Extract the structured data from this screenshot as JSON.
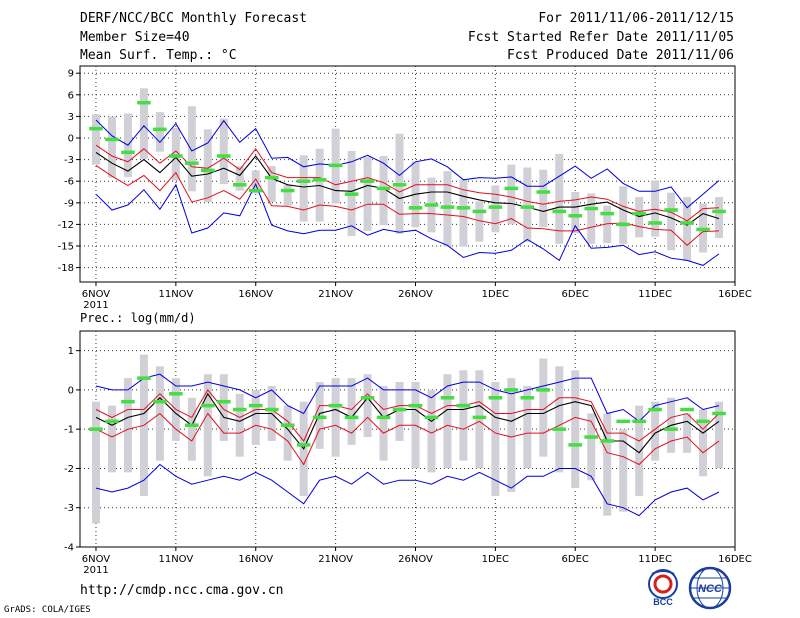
{
  "header": {
    "title": "DERF/NCC/BCC Monthly Forecast",
    "member": "Member Size=40",
    "variable": "Mean Surf. Temp.: °C",
    "period": "For 2011/11/06-2011/12/15",
    "started": "Fcst Started Refer Date 2011/11/05",
    "produced": "Fcst Produced Date 2011/11/06"
  },
  "footer": {
    "url": "http://cmdp.ncc.cma.gov.cn",
    "grads": "GrADS: COLA/IGES",
    "logo_bcc": "BCC",
    "logo_ncc": "NCC"
  },
  "colors": {
    "ensemble_spread": "#d0d0d6",
    "observed_mean": "#44dd44",
    "ensemble_mean": "#000000",
    "inner_bounds": "#e01020",
    "outer_bounds": "#0000dd",
    "grid": "#333333"
  },
  "chart_data": [
    {
      "type": "line",
      "title": "Mean Surf. Temp.: °C",
      "x_tick_labels": [
        "6NOV",
        "11NOV",
        "16NOV",
        "21NOV",
        "26NOV",
        "1DEC",
        "6DEC",
        "11DEC",
        "16DEC"
      ],
      "x_year_label": "2011",
      "ylim": [
        -20,
        10
      ],
      "yticks": [
        9,
        6,
        3,
        0,
        -3,
        -6,
        -9,
        -12,
        -15,
        -18
      ],
      "days": 40,
      "series": [
        {
          "name": "ensemble mean",
          "values": [
            -2.0,
            -3.5,
            -4.6,
            -3.0,
            -4.8,
            -2.7,
            -5.3,
            -5.0,
            -4.2,
            -5.2,
            -2.5,
            -5.6,
            -6.5,
            -6.8,
            -6.6,
            -7.3,
            -7.4,
            -6.6,
            -7.0,
            -8.4,
            -7.8,
            -7.5,
            -7.5,
            -8.1,
            -8.6,
            -9.0,
            -9.1,
            -9.6,
            -10.2,
            -9.6,
            -9.6,
            -9.2,
            -8.9,
            -10.0,
            -10.9,
            -10.4,
            -11.1,
            -12.1,
            -10.5,
            -11.2
          ]
        },
        {
          "name": "upper inner",
          "values": [
            -1.0,
            -2.5,
            -3.3,
            -1.5,
            -3.5,
            -1.8,
            -4.0,
            -4.2,
            -2.8,
            -4.4,
            -1.5,
            -4.8,
            -5.5,
            -5.5,
            -5.5,
            -6.5,
            -6.0,
            -5.5,
            -6.2,
            -7.5,
            -6.5,
            -6.5,
            -6.5,
            -7.2,
            -7.6,
            -7.8,
            -8.2,
            -8.8,
            -9.2,
            -8.8,
            -8.6,
            -8.2,
            -8.5,
            -9.5,
            -10.2,
            -9.9,
            -10.3,
            -11.5,
            -9.8,
            -9.7
          ]
        },
        {
          "name": "lower inner",
          "values": [
            -3.8,
            -5.3,
            -6.6,
            -5.2,
            -7.3,
            -4.8,
            -8.9,
            -8.3,
            -7.3,
            -8.5,
            -5.7,
            -9.4,
            -9.5,
            -10.0,
            -9.3,
            -9.5,
            -10.0,
            -9.2,
            -9.2,
            -10.6,
            -10.5,
            -10.5,
            -10.7,
            -10.9,
            -11.5,
            -11.9,
            -11.2,
            -12.5,
            -12.6,
            -12.9,
            -12.9,
            -12.4,
            -11.9,
            -11.8,
            -12.3,
            -12.7,
            -12.8,
            -14.9,
            -13.0,
            -12.9
          ]
        },
        {
          "name": "upper outer",
          "values": [
            2.5,
            0.3,
            -1.0,
            1.7,
            -0.6,
            2.0,
            -1.8,
            -0.7,
            2.4,
            -0.6,
            1.3,
            -2.8,
            -2.7,
            -4.0,
            -3.6,
            -3.8,
            -3.3,
            -2.4,
            -3.5,
            -5.2,
            -3.3,
            -2.9,
            -4.0,
            -5.8,
            -5.5,
            -5.6,
            -5.4,
            -6.7,
            -6.7,
            -5.3,
            -3.9,
            -5.6,
            -4.3,
            -6.3,
            -7.4,
            -7.4,
            -6.8,
            -9.7,
            -7.8,
            -5.9
          ]
        },
        {
          "name": "lower outer",
          "values": [
            -7.8,
            -10.0,
            -9.3,
            -7.2,
            -9.9,
            -6.5,
            -13.2,
            -12.5,
            -10.4,
            -10.8,
            -6.4,
            -12.1,
            -12.9,
            -13.3,
            -12.8,
            -12.8,
            -12.2,
            -13.5,
            -12.7,
            -13.1,
            -12.8,
            -14.0,
            -14.9,
            -16.6,
            -15.9,
            -16.0,
            -15.6,
            -14.1,
            -15.4,
            -17.0,
            -12.2,
            -15.3,
            -15.2,
            -14.9,
            -16.2,
            -15.8,
            -16.7,
            -17.0,
            -17.7,
            -16.1
          ]
        }
      ],
      "observed": [
        1.3,
        -0.2,
        -2.0,
        4.9,
        1.2,
        -2.5,
        -3.5,
        -4.5,
        -2.5,
        -6.5,
        -7.3,
        -5.5,
        -7.3,
        -6.0,
        -5.8,
        -3.8,
        -7.8,
        -6.0,
        -7.0,
        -6.5,
        -9.7,
        -9.3,
        -9.6,
        -9.7,
        -10.2,
        -9.6,
        -7.0,
        -9.6,
        -7.5,
        -10.2,
        -10.8,
        -9.8,
        -10.5,
        -12.0,
        -10.5,
        -11.8,
        -10.0,
        -11.8,
        -12.7,
        -10.2
      ],
      "spread_top": [
        3.3,
        3.0,
        3.4,
        6.9,
        3.6,
        1.4,
        4.4,
        1.2,
        2.7,
        -3.9,
        -4.5,
        -3.9,
        -6.5,
        -2.4,
        -1.5,
        1.3,
        -1.8,
        -2.6,
        -2.5,
        0.6,
        -3.3,
        -5.5,
        -4.6,
        -5.8,
        -8.8,
        -6.6,
        -3.7,
        -4.1,
        -4.4,
        -2.2,
        -7.5,
        -7.7,
        -9.4,
        -6.7,
        -8.2,
        -5.9,
        -7.6,
        -8.2,
        -9.1,
        -8.2
      ],
      "spread_bottom": [
        -3.7,
        -5.5,
        -5.4,
        -2.9,
        -1.9,
        -5.9,
        -7.4,
        -8.9,
        -6.4,
        -7.3,
        -7.7,
        -8.9,
        -9.4,
        -11.6,
        -11.6,
        -9.1,
        -13.6,
        -12.9,
        -12.1,
        -13.3,
        -12.4,
        -13.1,
        -15.1,
        -15.1,
        -14.4,
        -13.1,
        -12.0,
        -14.4,
        -12.4,
        -14.7,
        -13.2,
        -14.7,
        -14.6,
        -14.7,
        -13.8,
        -13.7,
        -15.6,
        -17.1,
        -15.9,
        -13.9
      ]
    },
    {
      "type": "line",
      "title": "Prec.: log(mm/d)",
      "x_tick_labels": [
        "6NOV",
        "11NOV",
        "16NOV",
        "21NOV",
        "26NOV",
        "1DEC",
        "6DEC",
        "11DEC",
        "16DEC"
      ],
      "x_year_label": "2011",
      "ylim": [
        -4,
        1.5
      ],
      "yticks": [
        1,
        0,
        -1,
        -2,
        -3,
        -4
      ],
      "days": 40,
      "series": [
        {
          "name": "ensemble mean",
          "values": [
            -0.7,
            -0.9,
            -0.7,
            -0.6,
            -0.2,
            -0.6,
            -0.9,
            -0.1,
            -0.7,
            -0.8,
            -0.6,
            -0.6,
            -1.0,
            -1.5,
            -0.6,
            -0.5,
            -0.7,
            -0.2,
            -0.7,
            -0.5,
            -0.5,
            -0.8,
            -0.5,
            -0.5,
            -0.4,
            -0.7,
            -0.8,
            -0.6,
            -0.6,
            -0.4,
            -0.3,
            -0.4,
            -1.3,
            -1.3,
            -1.6,
            -1.1,
            -0.9,
            -0.8,
            -1.1,
            -0.8
          ]
        },
        {
          "name": "upper inner",
          "values": [
            -0.5,
            -0.7,
            -0.5,
            -0.5,
            -0.1,
            -0.5,
            -0.7,
            0.0,
            -0.5,
            -0.7,
            -0.5,
            -0.5,
            -0.8,
            -1.3,
            -0.4,
            -0.4,
            -0.5,
            -0.1,
            -0.5,
            -0.4,
            -0.4,
            -0.6,
            -0.4,
            -0.4,
            -0.3,
            -0.6,
            -0.6,
            -0.5,
            -0.5,
            -0.2,
            -0.2,
            -0.3,
            -1.1,
            -1.1,
            -1.3,
            -1.0,
            -0.7,
            -0.6,
            -1.0,
            -0.6
          ]
        },
        {
          "name": "lower inner",
          "values": [
            -1.0,
            -1.2,
            -1.0,
            -0.9,
            -0.6,
            -1.0,
            -1.3,
            -0.6,
            -1.1,
            -1.1,
            -0.9,
            -1.0,
            -1.3,
            -1.9,
            -1.0,
            -0.9,
            -1.1,
            -0.7,
            -1.1,
            -0.9,
            -0.9,
            -1.1,
            -0.9,
            -1.0,
            -0.8,
            -1.1,
            -1.2,
            -1.1,
            -1.1,
            -0.9,
            -0.7,
            -0.8,
            -1.6,
            -1.7,
            -1.9,
            -1.5,
            -1.3,
            -1.2,
            -1.6,
            -1.3
          ]
        },
        {
          "name": "upper outer",
          "values": [
            0.1,
            0.0,
            0.0,
            0.3,
            0.4,
            0.1,
            0.1,
            0.2,
            0.1,
            0.0,
            -0.2,
            0.0,
            -0.4,
            -0.6,
            0.1,
            0.1,
            0.1,
            0.3,
            0.0,
            0.0,
            0.0,
            -0.2,
            0.1,
            0.2,
            0.2,
            0.0,
            -0.1,
            0.0,
            0.1,
            0.2,
            0.3,
            0.3,
            -0.6,
            -0.5,
            -0.8,
            -0.4,
            -0.3,
            -0.2,
            -0.5,
            -0.4
          ]
        },
        {
          "name": "lower outer",
          "values": [
            -2.5,
            -2.6,
            -2.5,
            -2.3,
            -1.9,
            -2.2,
            -2.4,
            -2.3,
            -2.2,
            -2.3,
            -2.1,
            -2.3,
            -2.6,
            -2.9,
            -2.3,
            -2.2,
            -2.4,
            -2.1,
            -2.4,
            -2.3,
            -2.3,
            -2.4,
            -2.2,
            -2.3,
            -2.1,
            -2.3,
            -2.5,
            -2.2,
            -2.2,
            -2.0,
            -2.0,
            -2.2,
            -2.9,
            -3.0,
            -3.2,
            -2.8,
            -2.6,
            -2.5,
            -2.8,
            -2.6
          ]
        }
      ],
      "observed": [
        -1.0,
        -0.8,
        -0.3,
        0.3,
        -0.3,
        -0.1,
        -0.9,
        -0.4,
        -0.3,
        -0.5,
        -0.4,
        -0.5,
        -0.9,
        -1.4,
        -0.7,
        -0.4,
        -0.7,
        -0.2,
        -0.7,
        -0.5,
        -0.4,
        -0.7,
        -0.2,
        -0.4,
        -0.7,
        -0.2,
        0.0,
        -0.2,
        0.0,
        -1.0,
        -1.4,
        -1.2,
        -1.3,
        -0.8,
        -0.8,
        -0.5,
        -1.0,
        -0.5,
        -0.8,
        -0.6
      ],
      "spread_top": [
        -0.3,
        -0.4,
        0.3,
        0.9,
        0.6,
        0.3,
        -0.2,
        0.4,
        0.4,
        -0.1,
        0.0,
        0.1,
        -0.4,
        -0.3,
        0.2,
        0.3,
        0.3,
        0.4,
        0.1,
        0.2,
        0.2,
        0.0,
        0.4,
        0.5,
        0.5,
        0.2,
        0.3,
        0.1,
        0.8,
        0.6,
        0.5,
        -0.6,
        -0.6,
        -1.0,
        -0.4,
        -0.3,
        -0.2,
        -0.6,
        -0.5,
        -0.3
      ],
      "spread_bottom": [
        -3.4,
        -2.1,
        -2.1,
        -2.7,
        -1.8,
        -1.3,
        -1.8,
        -2.2,
        -1.3,
        -1.7,
        -1.4,
        -1.3,
        -1.8,
        -2.7,
        -1.5,
        -1.7,
        -1.4,
        -1.2,
        -1.8,
        -1.3,
        -2.0,
        -2.1,
        -2.0,
        -1.8,
        -2.0,
        -2.7,
        -2.6,
        -2.0,
        -1.7,
        -2.1,
        -2.5,
        -2.3,
        -3.2,
        -3.1,
        -2.7,
        -1.8,
        -1.6,
        -1.6,
        -2.2,
        -2.0
      ]
    }
  ]
}
